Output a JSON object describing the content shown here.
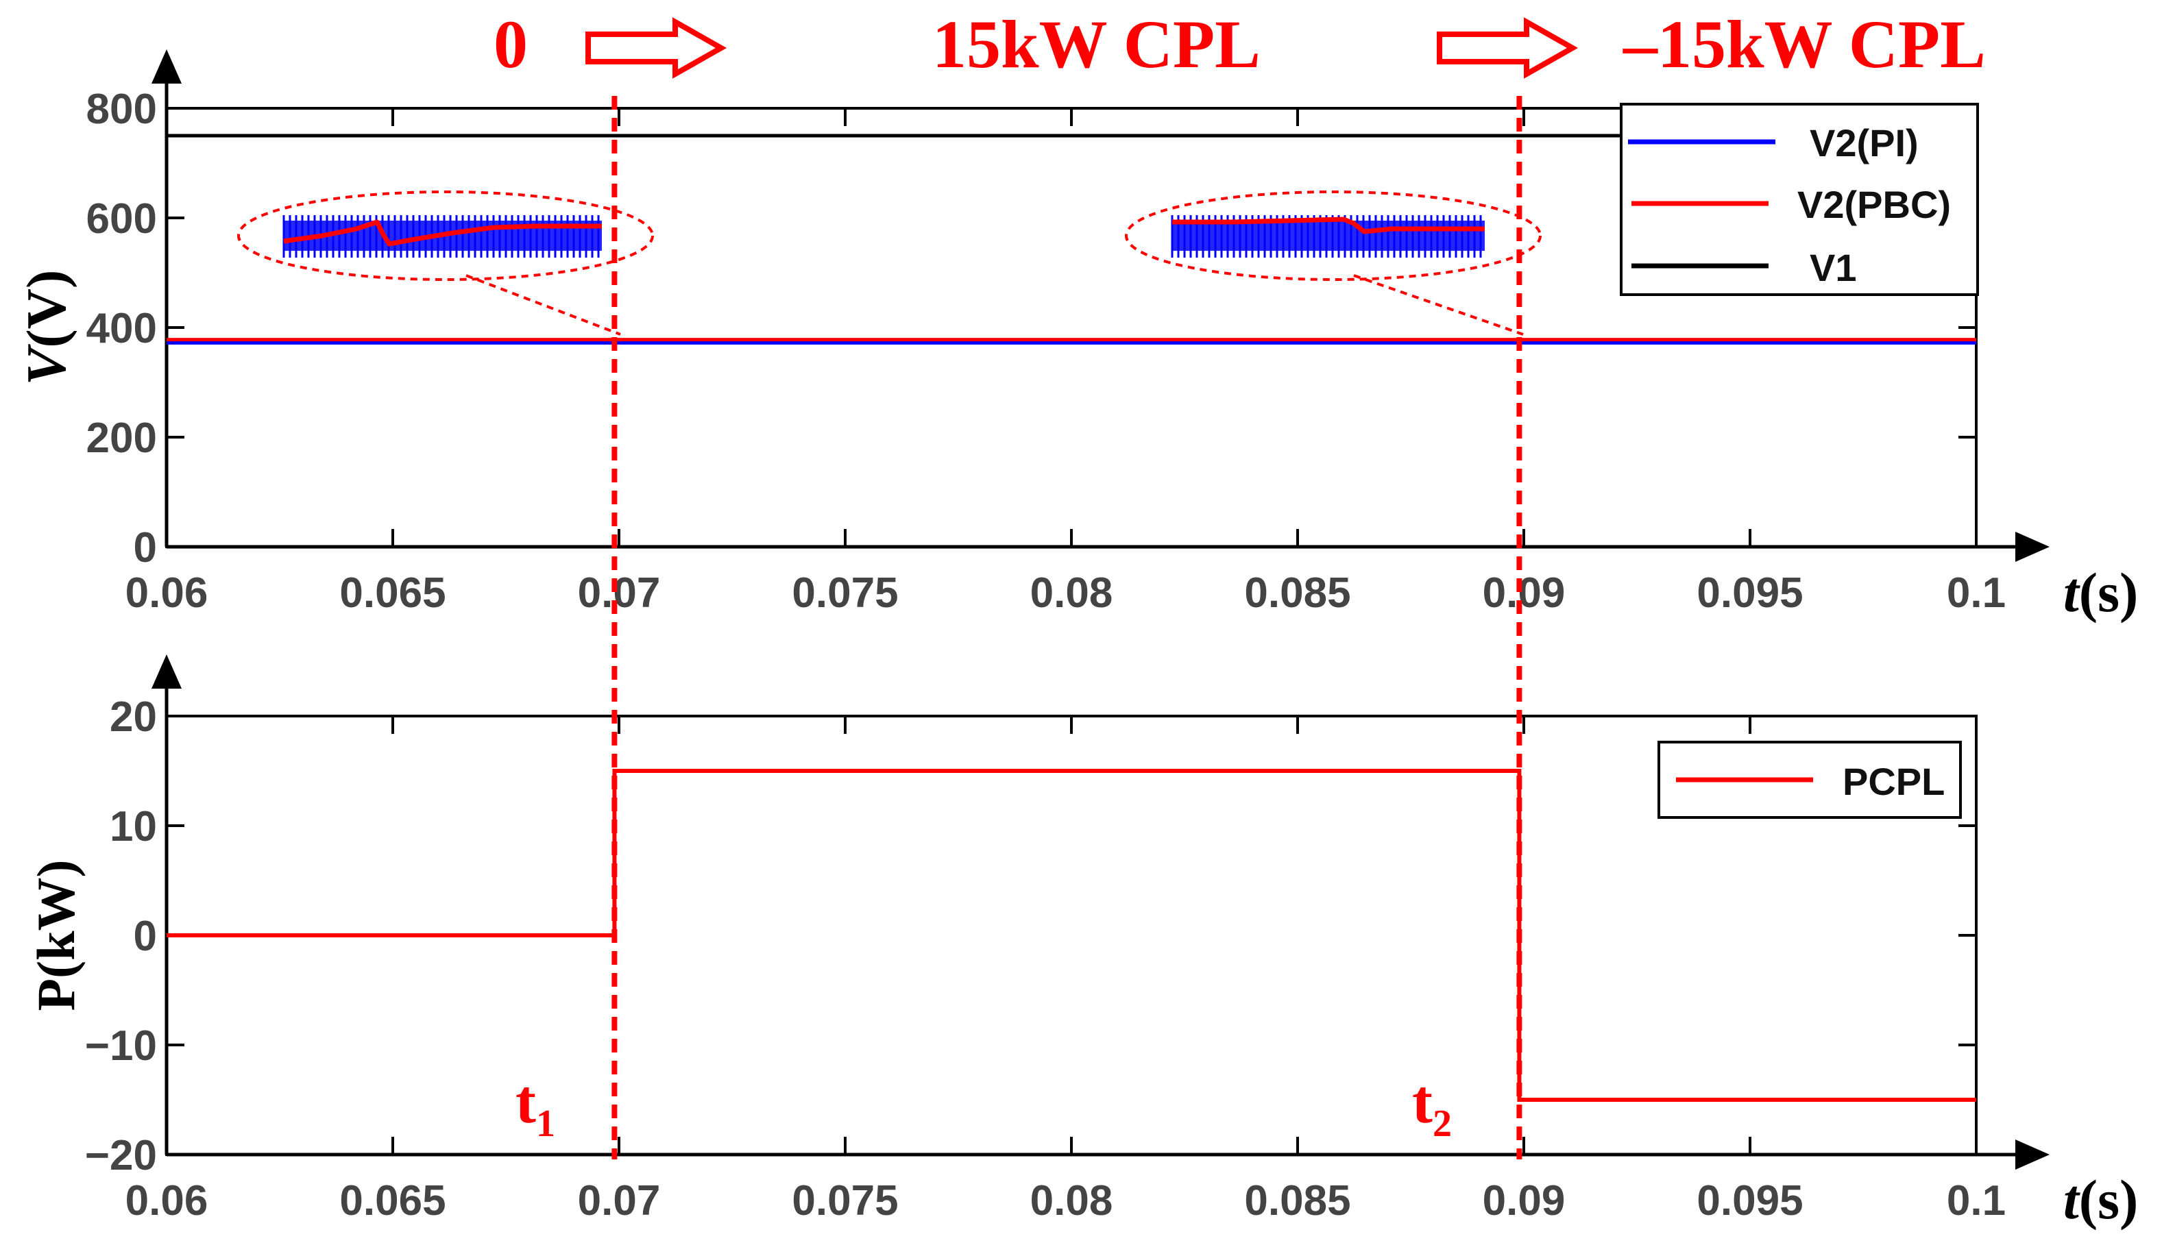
{
  "colors": {
    "red": "#ff0000",
    "blue": "#0000ff",
    "black": "#000000",
    "tick": "#444444"
  },
  "annotations": {
    "phase_labels": [
      "0",
      "15kW CPL",
      "–15kW CPL"
    ],
    "event_labels": [
      {
        "main": "t",
        "sub": "1",
        "x": 0.0699
      },
      {
        "main": "t",
        "sub": "2",
        "x": 0.0899
      }
    ]
  },
  "chart_data": [
    {
      "type": "line",
      "title": "",
      "xlabel_main": "t",
      "xlabel_unit": "(s)",
      "ylabel_main": "V",
      "ylabel_unit": "(V)",
      "xlim": [
        0.06,
        0.1
      ],
      "ylim": [
        0,
        800
      ],
      "xticks": [
        0.06,
        0.065,
        0.07,
        0.075,
        0.08,
        0.085,
        0.09,
        0.095,
        0.1
      ],
      "xtick_labels": [
        "0.06",
        "0.065",
        "0.07",
        "0.075",
        "0.08",
        "0.085",
        "0.09",
        "0.095",
        "0.1"
      ],
      "yticks": [
        0,
        200,
        400,
        600,
        800
      ],
      "ytick_labels": [
        "0",
        "200",
        "400",
        "600",
        "800"
      ],
      "legend_position": "top-right",
      "series": [
        {
          "name": "V2(PI)",
          "color": "#0000ff",
          "x": [
            0.06,
            0.1
          ],
          "y": [
            372,
            372
          ]
        },
        {
          "name": "V2(PBC)",
          "color": "#ff0000",
          "x": [
            0.06,
            0.1
          ],
          "y": [
            378,
            378
          ]
        },
        {
          "name": "V1",
          "color": "#000000",
          "x": [
            0.06,
            0.1
          ],
          "y": [
            750,
            750
          ]
        }
      ]
    },
    {
      "type": "line",
      "title": "",
      "xlabel_main": "t",
      "xlabel_unit": "(s)",
      "ylabel": "P(kW)",
      "xlim": [
        0.06,
        0.1
      ],
      "ylim": [
        -20,
        20
      ],
      "xticks": [
        0.06,
        0.065,
        0.07,
        0.075,
        0.08,
        0.085,
        0.09,
        0.095,
        0.1
      ],
      "xtick_labels": [
        "0.06",
        "0.065",
        "0.07",
        "0.075",
        "0.08",
        "0.085",
        "0.09",
        "0.095",
        "0.1"
      ],
      "yticks": [
        20,
        10,
        0,
        -10,
        -20
      ],
      "ytick_labels": [
        "20",
        "10",
        "0",
        "−10",
        "−20"
      ],
      "legend_position": "top-right",
      "series": [
        {
          "name": "PCPL",
          "color": "#ff0000",
          "x": [
            0.06,
            0.0699,
            0.0699,
            0.0899,
            0.0899,
            0.1
          ],
          "y": [
            0,
            0,
            15,
            15,
            -15,
            -15
          ]
        }
      ]
    }
  ]
}
